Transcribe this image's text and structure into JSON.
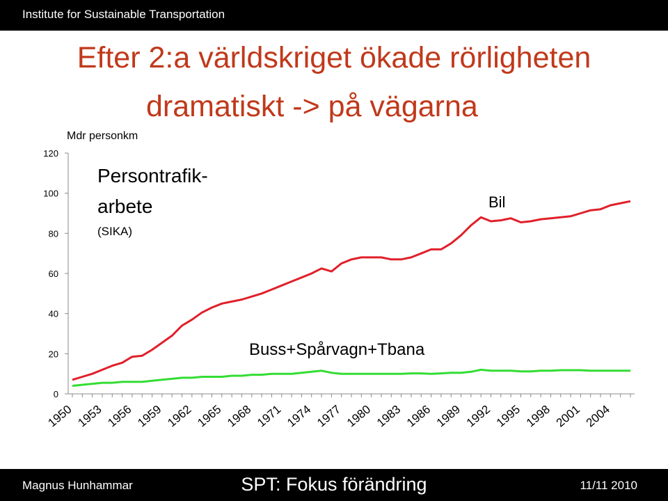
{
  "header": {
    "institute": "Institute for Sustainable Transportation"
  },
  "slide": {
    "title_line1": "Efter 2:a världskriget ökade rörligheten",
    "title_line2": "dramatiskt -> på vägarna"
  },
  "footer": {
    "author": "Magnus Hunhammar",
    "course": "SPT: Fokus förändring",
    "date": "11/11 2010"
  },
  "chart_data": {
    "type": "line",
    "ylabel": "Mdr personkm",
    "annotation_title": "Persontrafik-",
    "annotation_title2": "arbete",
    "annotation_source": "(SIKA)",
    "ylim": [
      0,
      120
    ],
    "yticks": [
      0,
      20,
      40,
      60,
      80,
      100,
      120
    ],
    "x": [
      1950,
      1951,
      1952,
      1953,
      1954,
      1955,
      1956,
      1957,
      1958,
      1959,
      1960,
      1961,
      1962,
      1963,
      1964,
      1965,
      1966,
      1967,
      1968,
      1969,
      1970,
      1971,
      1972,
      1973,
      1974,
      1975,
      1976,
      1977,
      1978,
      1979,
      1980,
      1981,
      1982,
      1983,
      1984,
      1985,
      1986,
      1987,
      1988,
      1989,
      1990,
      1991,
      1992,
      1993,
      1994,
      1995,
      1996,
      1997,
      1998,
      1999,
      2000,
      2001,
      2002,
      2003,
      2004,
      2005,
      2006
    ],
    "xticks": [
      1950,
      1953,
      1956,
      1959,
      1962,
      1965,
      1968,
      1971,
      1974,
      1977,
      1980,
      1983,
      1986,
      1989,
      1992,
      1995,
      1998,
      2001,
      2004
    ],
    "series": [
      {
        "name": "Bil",
        "color": "#e0202a",
        "values": [
          7,
          8.5,
          10,
          12,
          14,
          15.5,
          18.5,
          19,
          22,
          25.5,
          29,
          34,
          37,
          40.5,
          43,
          45,
          46,
          47,
          48.5,
          50,
          52,
          54,
          56,
          58,
          60,
          62.5,
          61,
          65,
          67,
          68,
          68,
          68,
          67,
          67,
          68,
          70,
          72,
          72,
          75,
          79,
          84,
          88,
          86,
          86.5,
          87.5,
          85.5,
          86,
          87,
          87.5,
          88,
          88.5,
          90,
          91.5,
          92,
          94,
          95,
          96
        ]
      },
      {
        "name": "Buss+Spårvagn+Tbana",
        "color": "#33dd33",
        "values": [
          4,
          4.5,
          5,
          5.5,
          5.5,
          6,
          6,
          6,
          6.5,
          7,
          7.5,
          8,
          8,
          8.5,
          8.5,
          8.5,
          9,
          9,
          9.5,
          9.5,
          10,
          10,
          10,
          10.5,
          11,
          11.5,
          10.5,
          10,
          10,
          10,
          10,
          10,
          10,
          10,
          10.2,
          10.2,
          10,
          10.2,
          10.5,
          10.5,
          11,
          12,
          11.5,
          11.5,
          11.5,
          11.2,
          11.2,
          11.5,
          11.5,
          11.8,
          11.8,
          11.8,
          11.5,
          11.5,
          11.5,
          11.5,
          11.5
        ]
      }
    ]
  }
}
